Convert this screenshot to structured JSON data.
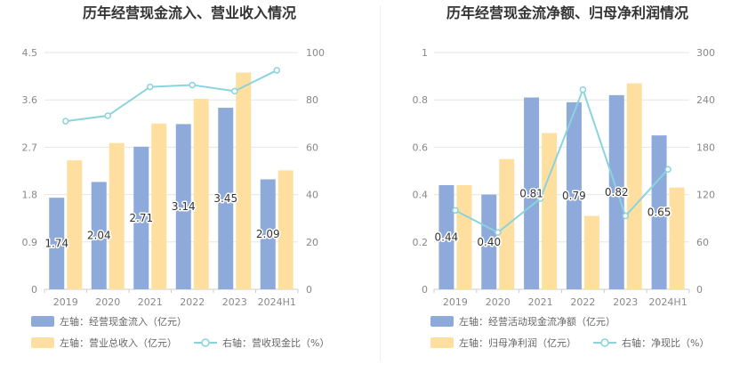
{
  "chart_data": [
    {
      "type": "bar+line",
      "title": "历年经营现金流入、营业收入情况",
      "categories": [
        "2019",
        "2020",
        "2021",
        "2022",
        "2023",
        "2024H1"
      ],
      "left_axis": {
        "min": 0,
        "max": 4.5,
        "ticks": [
          "0",
          "0.9",
          "1.8",
          "2.7",
          "3.6",
          "4.5"
        ]
      },
      "right_axis": {
        "min": 0,
        "max": 100,
        "ticks": [
          "0",
          "20",
          "40",
          "60",
          "80",
          "100"
        ]
      },
      "series": [
        {
          "name": "左轴：经营现金流入（亿元）",
          "kind": "bar",
          "axis": "left",
          "color": "#8eaadb",
          "values": [
            1.74,
            2.04,
            2.71,
            3.14,
            3.45,
            2.09
          ],
          "labels": [
            "1.74",
            "2.04",
            "2.71",
            "3.14",
            "3.45",
            "2.09"
          ]
        },
        {
          "name": "左轴：营业总收入（亿元）",
          "kind": "bar",
          "axis": "left",
          "color": "#ffdf9f",
          "values": [
            2.45,
            2.78,
            3.15,
            3.62,
            4.12,
            2.26
          ]
        },
        {
          "name": "右轴：营收现金比（%）",
          "kind": "line",
          "axis": "right",
          "color": "#8bd3dd",
          "values": [
            71,
            73.3,
            85.5,
            86.3,
            83.7,
            92.5
          ]
        }
      ]
    },
    {
      "type": "bar+line",
      "title": "历年经营现金流净额、归母净利润情况",
      "categories": [
        "2019",
        "2020",
        "2021",
        "2022",
        "2023",
        "2024H1"
      ],
      "left_axis": {
        "min": 0,
        "max": 1,
        "ticks": [
          "0",
          "0.2",
          "0.4",
          "0.6",
          "0.8",
          "1"
        ]
      },
      "right_axis": {
        "min": 0,
        "max": 300,
        "ticks": [
          "0",
          "60",
          "120",
          "180",
          "240",
          "300"
        ]
      },
      "series": [
        {
          "name": "左轴：经营活动现金流净额（亿元）",
          "kind": "bar",
          "axis": "left",
          "color": "#8eaadb",
          "values": [
            0.44,
            0.4,
            0.81,
            0.79,
            0.82,
            0.65
          ],
          "labels": [
            "0.44",
            "0.40",
            "0.81",
            "0.79",
            "0.82",
            "0.65"
          ]
        },
        {
          "name": "左轴：归母净利润（亿元）",
          "kind": "bar",
          "axis": "left",
          "color": "#ffdf9f",
          "values": [
            0.44,
            0.55,
            0.66,
            0.31,
            0.87,
            0.43
          ]
        },
        {
          "name": "右轴：净现比（%）",
          "kind": "line",
          "axis": "right",
          "color": "#8bd3dd",
          "values": [
            100,
            72,
            115,
            253,
            93,
            152
          ]
        }
      ]
    }
  ]
}
